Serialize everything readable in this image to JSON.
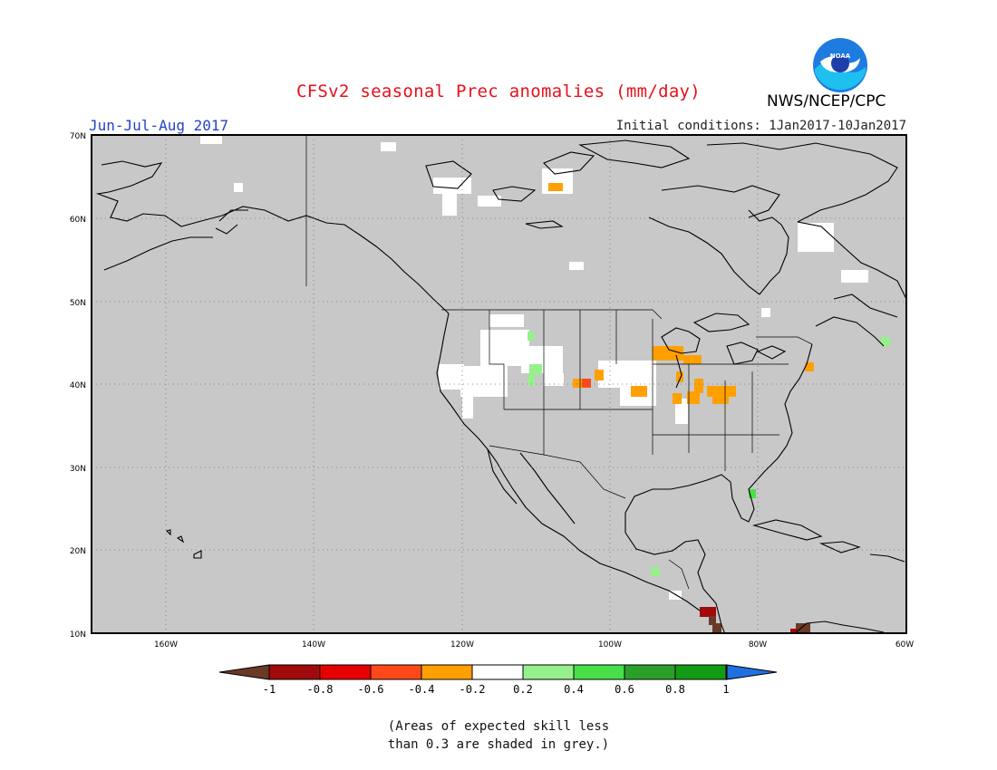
{
  "header": {
    "title": "CFSv2 seasonal Prec anomalies (mm/day)",
    "agency": "NWS/NCEP/CPC",
    "season": "Jun-Jul-Aug 2017",
    "initial_conditions": "Initial conditions: 1Jan2017-10Jan2017"
  },
  "logo": {
    "icon": "noaa-logo-icon",
    "text": "NOAA"
  },
  "map": {
    "region": "North America",
    "lat_labels": [
      "70N",
      "60N",
      "50N",
      "40N",
      "30N",
      "20N",
      "10N"
    ],
    "lon_labels": [
      "160W",
      "140W",
      "120W",
      "100W",
      "80W",
      "60W"
    ],
    "lat_range": [
      10,
      70
    ],
    "lon_range": [
      -170,
      -60
    ],
    "grid": "dotted",
    "background_color": "#c8c8c8"
  },
  "colorbar": {
    "labels": [
      "-1",
      "-0.8",
      "-0.6",
      "-0.4",
      "-0.2",
      "0.2",
      "0.4",
      "0.6",
      "0.8",
      "1"
    ],
    "colors": [
      "#6b3a26",
      "#a00a0a",
      "#e60000",
      "#ff4818",
      "#ffa000",
      "#ffffff",
      "#96f08c",
      "#48e048",
      "#2aa02a",
      "#139b13",
      "#2070e0"
    ]
  },
  "note": {
    "line1": "(Areas of expected skill less",
    "line2": "than 0.3 are shaded in grey.)"
  }
}
